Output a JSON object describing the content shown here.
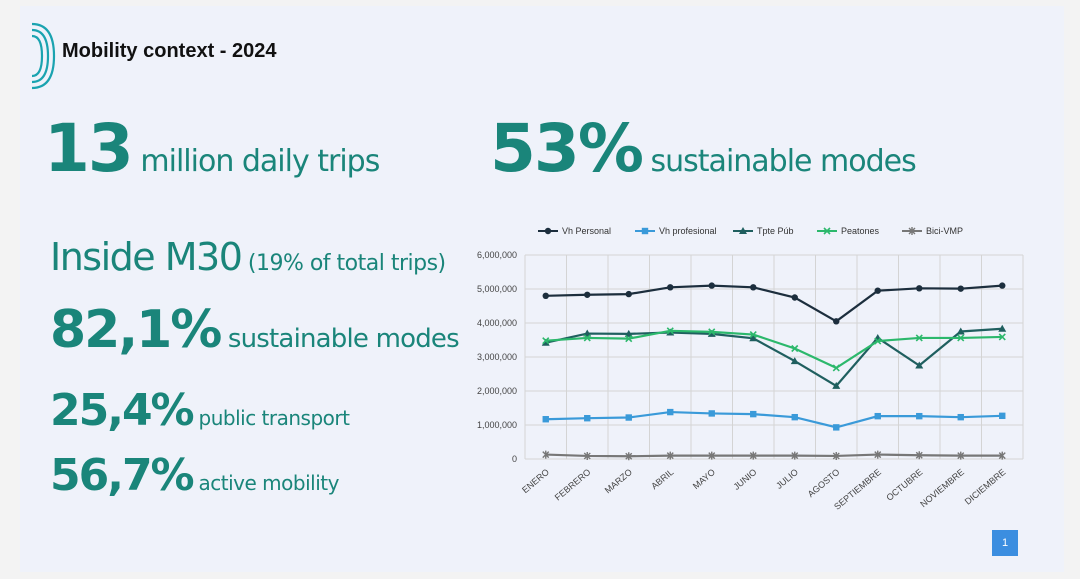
{
  "title": "Mobility context - 2024",
  "stats": {
    "trips": {
      "number": "13",
      "text": " million daily trips"
    },
    "sustainable": {
      "number": "53%",
      "text": " sustainable modes"
    },
    "inside": {
      "lead": "Inside M30",
      "paren": " (19% of total trips)"
    },
    "sustainable_m30": {
      "number": "82,1%",
      "text": " sustainable modes"
    },
    "public_transport": {
      "number": "25,4%",
      "text": " public transport"
    },
    "active_mobility": {
      "number": "56,7%",
      "text": " active mobility"
    }
  },
  "page_number": "1",
  "chart_data": {
    "type": "line",
    "categories": [
      "ENERO",
      "FEBRERO",
      "MARZO",
      "ABRIL",
      "MAYO",
      "JUNIO",
      "JULIO",
      "AGOSTO",
      "SEPTIEMBRE",
      "OCTUBRE",
      "NOVIEMBRE",
      "DICIEMBRE"
    ],
    "ylim": [
      0,
      6000000
    ],
    "yticks": [
      "0",
      "1,000,000",
      "2,000,000",
      "3,000,000",
      "4,000,000",
      "5,000,000",
      "6,000,000"
    ],
    "grid": true,
    "legend_position": "top",
    "series": [
      {
        "name": "Vh Personal",
        "color": "#1c2e3d",
        "marker": "circle",
        "values": [
          4800000,
          4830000,
          4850000,
          5050000,
          5100000,
          5050000,
          4750000,
          4050000,
          4950000,
          5020000,
          5010000,
          5100000
        ]
      },
      {
        "name": "Vh profesional",
        "color": "#3a9ad9",
        "marker": "square",
        "values": [
          1170000,
          1200000,
          1220000,
          1380000,
          1340000,
          1320000,
          1230000,
          930000,
          1260000,
          1260000,
          1230000,
          1270000
        ]
      },
      {
        "name": "Tpte Púb",
        "color": "#1f5f5f",
        "marker": "triangle",
        "values": [
          3420000,
          3690000,
          3680000,
          3720000,
          3680000,
          3550000,
          2880000,
          2150000,
          3560000,
          2750000,
          3750000,
          3830000
        ]
      },
      {
        "name": "Peatones",
        "color": "#2cb86c",
        "marker": "x",
        "values": [
          3480000,
          3560000,
          3540000,
          3770000,
          3740000,
          3660000,
          3250000,
          2680000,
          3470000,
          3560000,
          3560000,
          3590000
        ]
      },
      {
        "name": "Bici-VMP",
        "color": "#777777",
        "marker": "star",
        "values": [
          130000,
          90000,
          80000,
          100000,
          100000,
          100000,
          100000,
          90000,
          130000,
          110000,
          100000,
          100000
        ]
      }
    ]
  }
}
